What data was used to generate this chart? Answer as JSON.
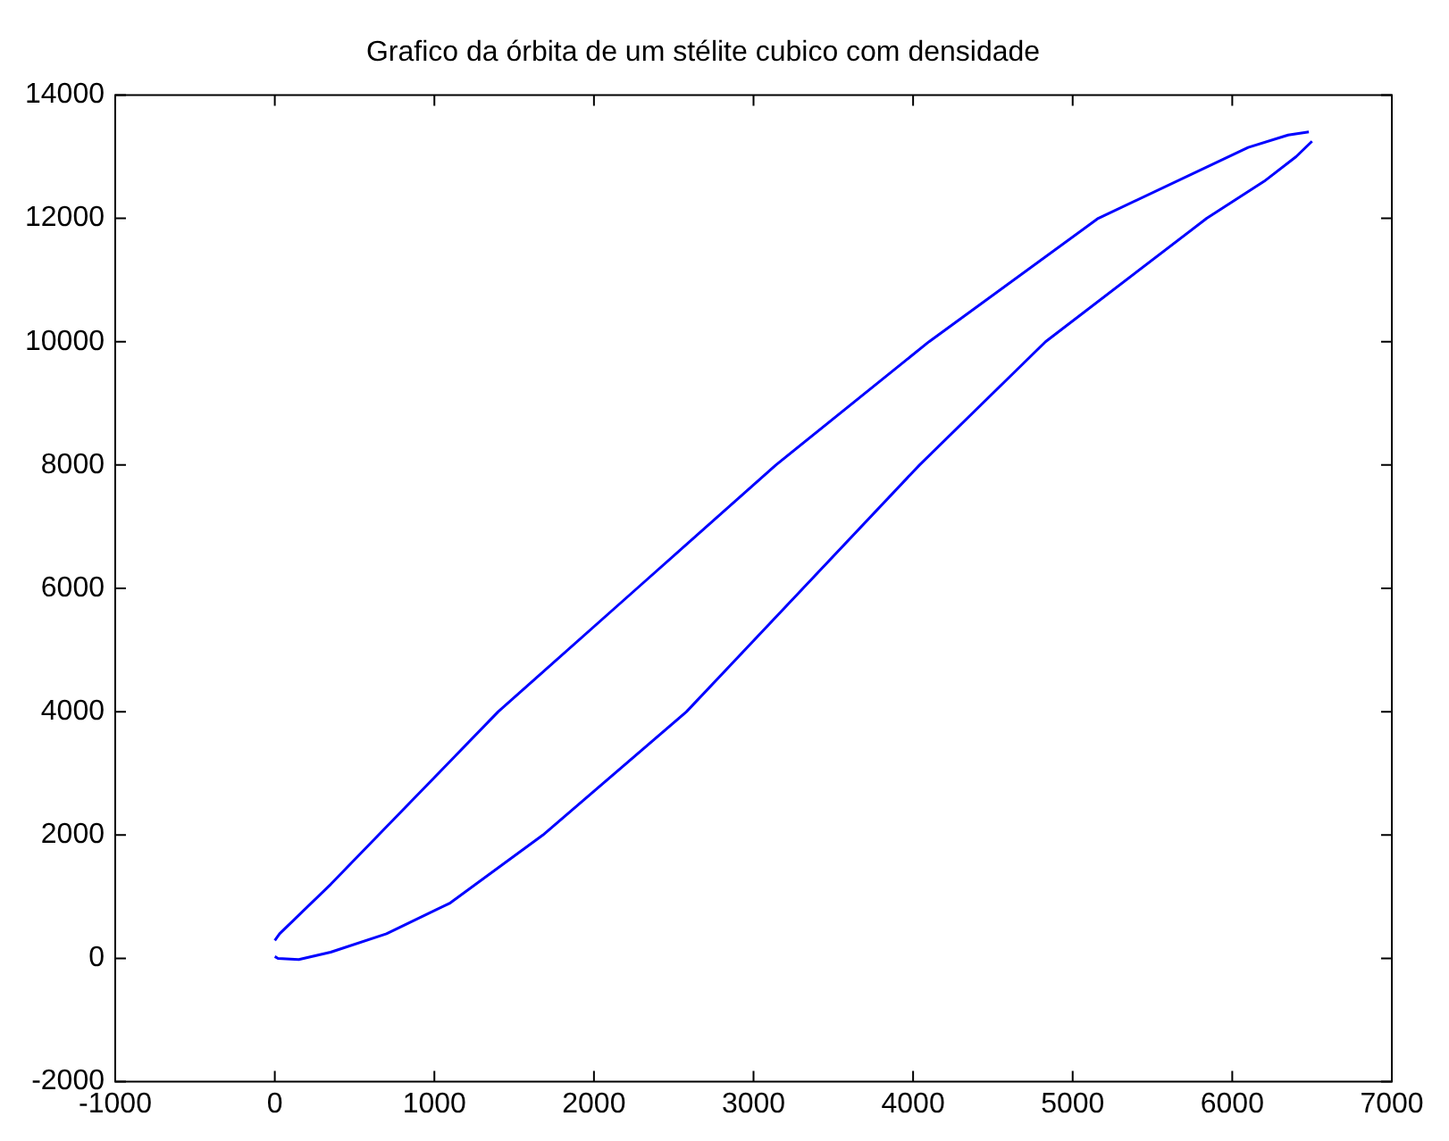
{
  "chart_data": {
    "type": "line",
    "title": "Grafico da órbita de um stélite cubico com densidade",
    "series": [
      {
        "color": "#0000ff",
        "x": [
          0,
          20,
          150,
          350,
          700,
          1100,
          1680,
          2580,
          3310,
          4040,
          4830,
          5840,
          6200,
          6400,
          6500
        ],
        "values": [
          30,
          0,
          -20,
          100,
          400,
          900,
          2000,
          4000,
          6000,
          8000,
          10000,
          12000,
          12600,
          13000,
          13250
        ]
      },
      {
        "color": "#0000ff",
        "x": [
          0,
          30,
          150,
          350,
          650,
          1400,
          2270,
          3140,
          4100,
          5160,
          6100,
          6350,
          6480
        ],
        "values": [
          290,
          400,
          700,
          1200,
          2000,
          4000,
          6000,
          8000,
          10000,
          12000,
          13150,
          13350,
          13400
        ]
      }
    ],
    "xlim": [
      -1000,
      7000
    ],
    "xticks": [
      -1000,
      0,
      1000,
      2000,
      3000,
      4000,
      5000,
      6000,
      7000
    ],
    "ylim": [
      -2000,
      14000
    ],
    "yticks": [
      -2000,
      0,
      2000,
      4000,
      6000,
      8000,
      10000,
      12000,
      14000
    ],
    "grid": false,
    "legend": false,
    "marker": "none",
    "line_style": "solid"
  }
}
